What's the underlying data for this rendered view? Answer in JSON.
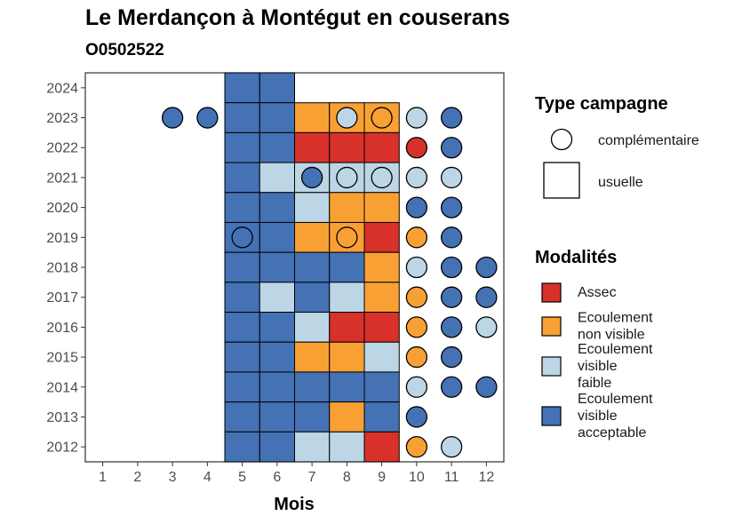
{
  "title": "Le Merdançon à Montégut en couserans",
  "subtitle": "O0502522",
  "chart_data": {
    "type": "heatmap",
    "title": "Le Merdançon à Montégut en couserans",
    "subtitle": "O0502522",
    "xlabel": "Mois",
    "ylabel": "",
    "x_ticks": [
      "1",
      "2",
      "3",
      "4",
      "5",
      "6",
      "7",
      "8",
      "9",
      "10",
      "11",
      "12"
    ],
    "y_ticks": [
      "2012",
      "2013",
      "2014",
      "2015",
      "2016",
      "2017",
      "2018",
      "2019",
      "2020",
      "2021",
      "2022",
      "2023",
      "2024"
    ],
    "xlim": [
      0.5,
      12.5
    ],
    "ylim": [
      2011.5,
      2024.5
    ],
    "grid": false,
    "legend_position": "right",
    "colors": {
      "Assec": "#d7312a",
      "Ecoulement non visible": "#f9a035",
      "Ecoulement visible faible": "#bcd6e6",
      "Ecoulement visible acceptable": "#4572b5"
    },
    "legends": [
      {
        "title": "Type campagne",
        "entries": [
          {
            "label": "complémentaire",
            "shape": "circle"
          },
          {
            "label": "usuelle",
            "shape": "square"
          }
        ]
      },
      {
        "title": "Modalités",
        "entries": [
          {
            "label": [
              "Assec"
            ],
            "color": "#d7312a"
          },
          {
            "label": [
              "Ecoulement",
              "non visible"
            ],
            "color": "#f9a035"
          },
          {
            "label": [
              "Ecoulement",
              "visible",
              "faible"
            ],
            "color": "#bcd6e6"
          },
          {
            "label": [
              "Ecoulement",
              "visible",
              "acceptable"
            ],
            "color": "#4572b5"
          }
        ]
      }
    ],
    "usuelle": [
      {
        "year": 2024,
        "values": {
          "5": "Ecoulement visible acceptable",
          "6": "Ecoulement visible acceptable"
        }
      },
      {
        "year": 2023,
        "values": {
          "5": "Ecoulement visible acceptable",
          "6": "Ecoulement visible acceptable",
          "7": "Ecoulement non visible",
          "8": "Ecoulement non visible",
          "9": "Ecoulement non visible"
        }
      },
      {
        "year": 2022,
        "values": {
          "5": "Ecoulement visible acceptable",
          "6": "Ecoulement visible acceptable",
          "7": "Assec",
          "8": "Assec",
          "9": "Assec"
        }
      },
      {
        "year": 2021,
        "values": {
          "5": "Ecoulement visible acceptable",
          "6": "Ecoulement visible faible",
          "7": "Ecoulement visible faible",
          "8": "Ecoulement visible faible",
          "9": "Ecoulement visible faible"
        }
      },
      {
        "year": 2020,
        "values": {
          "5": "Ecoulement visible acceptable",
          "6": "Ecoulement visible acceptable",
          "7": "Ecoulement visible faible",
          "8": "Ecoulement non visible",
          "9": "Ecoulement non visible"
        }
      },
      {
        "year": 2019,
        "values": {
          "5": "Ecoulement visible acceptable",
          "6": "Ecoulement visible acceptable",
          "7": "Ecoulement non visible",
          "8": "Ecoulement non visible",
          "9": "Assec"
        }
      },
      {
        "year": 2018,
        "values": {
          "5": "Ecoulement visible acceptable",
          "6": "Ecoulement visible acceptable",
          "7": "Ecoulement visible acceptable",
          "8": "Ecoulement visible acceptable",
          "9": "Ecoulement non visible"
        }
      },
      {
        "year": 2017,
        "values": {
          "5": "Ecoulement visible acceptable",
          "6": "Ecoulement visible faible",
          "7": "Ecoulement visible acceptable",
          "8": "Ecoulement visible faible",
          "9": "Ecoulement non visible"
        }
      },
      {
        "year": 2016,
        "values": {
          "5": "Ecoulement visible acceptable",
          "6": "Ecoulement visible acceptable",
          "7": "Ecoulement visible faible",
          "8": "Assec",
          "9": "Assec"
        }
      },
      {
        "year": 2015,
        "values": {
          "5": "Ecoulement visible acceptable",
          "6": "Ecoulement visible acceptable",
          "7": "Ecoulement non visible",
          "8": "Ecoulement non visible",
          "9": "Ecoulement visible faible"
        }
      },
      {
        "year": 2014,
        "values": {
          "5": "Ecoulement visible acceptable",
          "6": "Ecoulement visible acceptable",
          "7": "Ecoulement visible acceptable",
          "8": "Ecoulement visible acceptable",
          "9": "Ecoulement visible acceptable"
        }
      },
      {
        "year": 2013,
        "values": {
          "5": "Ecoulement visible acceptable",
          "6": "Ecoulement visible acceptable",
          "7": "Ecoulement visible acceptable",
          "8": "Ecoulement non visible",
          "9": "Ecoulement visible acceptable"
        }
      },
      {
        "year": 2012,
        "values": {
          "5": "Ecoulement visible acceptable",
          "6": "Ecoulement visible acceptable",
          "7": "Ecoulement visible faible",
          "8": "Ecoulement visible faible",
          "9": "Assec"
        }
      }
    ],
    "complementaire": [
      {
        "year": 2023,
        "month": 3,
        "value": "Ecoulement visible acceptable"
      },
      {
        "year": 2023,
        "month": 4,
        "value": "Ecoulement visible acceptable"
      },
      {
        "year": 2023,
        "month": 8,
        "value": "Ecoulement visible faible"
      },
      {
        "year": 2023,
        "month": 9,
        "value": "Ecoulement non visible"
      },
      {
        "year": 2023,
        "month": 10,
        "value": "Ecoulement visible faible"
      },
      {
        "year": 2023,
        "month": 11,
        "value": "Ecoulement visible acceptable"
      },
      {
        "year": 2022,
        "month": 10,
        "value": "Assec"
      },
      {
        "year": 2022,
        "month": 11,
        "value": "Ecoulement visible acceptable"
      },
      {
        "year": 2021,
        "month": 7,
        "value": "Ecoulement visible acceptable"
      },
      {
        "year": 2021,
        "month": 8,
        "value": "Ecoulement visible faible"
      },
      {
        "year": 2021,
        "month": 9,
        "value": "Ecoulement visible faible"
      },
      {
        "year": 2021,
        "month": 10,
        "value": "Ecoulement visible faible"
      },
      {
        "year": 2021,
        "month": 11,
        "value": "Ecoulement visible faible"
      },
      {
        "year": 2020,
        "month": 10,
        "value": "Ecoulement visible acceptable"
      },
      {
        "year": 2020,
        "month": 11,
        "value": "Ecoulement visible acceptable"
      },
      {
        "year": 2019,
        "month": 5,
        "value": "Ecoulement visible acceptable"
      },
      {
        "year": 2019,
        "month": 8,
        "value": "Ecoulement non visible"
      },
      {
        "year": 2019,
        "month": 10,
        "value": "Ecoulement non visible"
      },
      {
        "year": 2019,
        "month": 11,
        "value": "Ecoulement visible acceptable"
      },
      {
        "year": 2018,
        "month": 10,
        "value": "Ecoulement visible faible"
      },
      {
        "year": 2018,
        "month": 11,
        "value": "Ecoulement visible acceptable"
      },
      {
        "year": 2018,
        "month": 12,
        "value": "Ecoulement visible acceptable"
      },
      {
        "year": 2017,
        "month": 10,
        "value": "Ecoulement non visible"
      },
      {
        "year": 2017,
        "month": 11,
        "value": "Ecoulement visible acceptable"
      },
      {
        "year": 2017,
        "month": 12,
        "value": "Ecoulement visible acceptable"
      },
      {
        "year": 2016,
        "month": 10,
        "value": "Ecoulement non visible"
      },
      {
        "year": 2016,
        "month": 11,
        "value": "Ecoulement visible acceptable"
      },
      {
        "year": 2016,
        "month": 12,
        "value": "Ecoulement visible faible"
      },
      {
        "year": 2015,
        "month": 10,
        "value": "Ecoulement non visible"
      },
      {
        "year": 2015,
        "month": 11,
        "value": "Ecoulement visible acceptable"
      },
      {
        "year": 2014,
        "month": 10,
        "value": "Ecoulement visible faible"
      },
      {
        "year": 2014,
        "month": 11,
        "value": "Ecoulement visible acceptable"
      },
      {
        "year": 2014,
        "month": 12,
        "value": "Ecoulement visible acceptable"
      },
      {
        "year": 2013,
        "month": 10,
        "value": "Ecoulement visible acceptable"
      },
      {
        "year": 2012,
        "month": 10,
        "value": "Ecoulement non visible"
      },
      {
        "year": 2012,
        "month": 11,
        "value": "Ecoulement visible faible"
      }
    ]
  }
}
